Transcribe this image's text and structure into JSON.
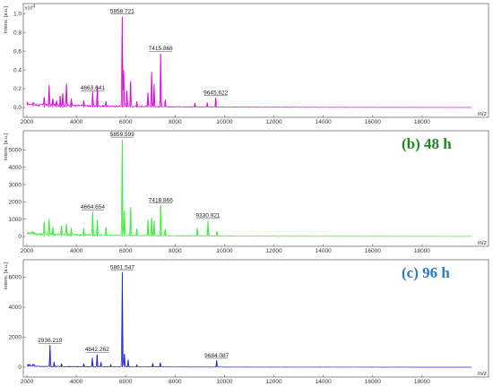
{
  "chart_data": [
    {
      "type": "line",
      "ylabel": "Intens. [a.u.]",
      "xlabel": "m/z",
      "y_exponent_label": "x10",
      "y_exponent_power": "4",
      "title": "",
      "ylim": [
        0,
        1.05
      ],
      "xlim": [
        2000,
        20000
      ],
      "yticks": [
        "0.0",
        "0.2",
        "0.4",
        "0.6",
        "0.8",
        "1.0"
      ],
      "ytick_values": [
        0,
        0.2,
        0.4,
        0.6,
        0.8,
        1.0
      ],
      "color": "#e000e0",
      "peaks": [
        {
          "x": 2700,
          "y": 0.1
        },
        {
          "x": 2900,
          "y": 0.22
        },
        {
          "x": 3050,
          "y": 0.08
        },
        {
          "x": 3200,
          "y": 0.05
        },
        {
          "x": 3350,
          "y": 0.12
        },
        {
          "x": 3450,
          "y": 0.15
        },
        {
          "x": 3600,
          "y": 0.24
        },
        {
          "x": 3800,
          "y": 0.09
        },
        {
          "x": 4300,
          "y": 0.06
        },
        {
          "x": 4663.641,
          "y": 0.15
        },
        {
          "x": 4850,
          "y": 0.22
        },
        {
          "x": 5200,
          "y": 0.06
        },
        {
          "x": 5858.721,
          "y": 0.97
        },
        {
          "x": 5920,
          "y": 0.4
        },
        {
          "x": 6050,
          "y": 0.18
        },
        {
          "x": 6200,
          "y": 0.28
        },
        {
          "x": 6450,
          "y": 0.06
        },
        {
          "x": 6900,
          "y": 0.16
        },
        {
          "x": 7050,
          "y": 0.38
        },
        {
          "x": 7150,
          "y": 0.25
        },
        {
          "x": 7415.868,
          "y": 0.57
        },
        {
          "x": 7600,
          "y": 0.08
        },
        {
          "x": 8800,
          "y": 0.04
        },
        {
          "x": 9300,
          "y": 0.05
        },
        {
          "x": 9645.622,
          "y": 0.1
        }
      ],
      "annotations": [
        {
          "x": 4663.641,
          "y": 0.17,
          "label": "4663.641"
        },
        {
          "x": 5858.721,
          "y": 0.99,
          "label": "5858.721"
        },
        {
          "x": 7415.868,
          "y": 0.59,
          "label": "7415.868"
        },
        {
          "x": 9645.622,
          "y": 0.12,
          "label": "9645.622"
        }
      ],
      "baseline": 0.03
    },
    {
      "type": "line",
      "ylabel": "Intens. [a.u.]",
      "xlabel": "m/z",
      "title": "(b) 48 h",
      "title_color": "#1e8a1e",
      "ylim": [
        0,
        5800
      ],
      "xlim": [
        2000,
        20000
      ],
      "yticks": [
        "0",
        "1000",
        "2000",
        "3000",
        "4000",
        "5000"
      ],
      "ytick_values": [
        0,
        1000,
        2000,
        3000,
        4000,
        5000
      ],
      "color": "#33ee33",
      "peaks": [
        {
          "x": 2700,
          "y": 800
        },
        {
          "x": 2900,
          "y": 900
        },
        {
          "x": 3050,
          "y": 500
        },
        {
          "x": 3400,
          "y": 600
        },
        {
          "x": 3600,
          "y": 700
        },
        {
          "x": 3800,
          "y": 400
        },
        {
          "x": 4300,
          "y": 400
        },
        {
          "x": 4664.654,
          "y": 1400
        },
        {
          "x": 4850,
          "y": 900
        },
        {
          "x": 5200,
          "y": 500
        },
        {
          "x": 5859.599,
          "y": 5600
        },
        {
          "x": 5950,
          "y": 1500
        },
        {
          "x": 6200,
          "y": 1700
        },
        {
          "x": 6450,
          "y": 400
        },
        {
          "x": 6900,
          "y": 1000
        },
        {
          "x": 7050,
          "y": 1100
        },
        {
          "x": 7150,
          "y": 900
        },
        {
          "x": 7418.866,
          "y": 1800
        },
        {
          "x": 7600,
          "y": 400
        },
        {
          "x": 8900,
          "y": 500
        },
        {
          "x": 9330.921,
          "y": 900
        },
        {
          "x": 9700,
          "y": 300
        }
      ],
      "annotations": [
        {
          "x": 4664.654,
          "y": 1500,
          "label": "4664.654"
        },
        {
          "x": 5859.599,
          "y": 5700,
          "label": "5859.599"
        },
        {
          "x": 7418.866,
          "y": 1900,
          "label": "7418.866"
        },
        {
          "x": 9330.921,
          "y": 1000,
          "label": "9330.921"
        }
      ],
      "baseline": 150
    },
    {
      "type": "line",
      "ylabel": "Intens. [a.u.]",
      "xlabel": "m/z",
      "title": "(c) 96 h",
      "title_color": "#2a7ac8",
      "ylim": [
        0,
        6800
      ],
      "xlim": [
        2000,
        20000
      ],
      "yticks": [
        "0",
        "2000",
        "4000",
        "6000"
      ],
      "ytick_values": [
        0,
        2000,
        4000,
        6000
      ],
      "color": "#2020dd",
      "peaks": [
        {
          "x": 2936.219,
          "y": 1450
        },
        {
          "x": 3100,
          "y": 300
        },
        {
          "x": 3400,
          "y": 200
        },
        {
          "x": 4300,
          "y": 200
        },
        {
          "x": 4650,
          "y": 600
        },
        {
          "x": 4842.262,
          "y": 850
        },
        {
          "x": 5000,
          "y": 300
        },
        {
          "x": 5400,
          "y": 150
        },
        {
          "x": 5861.547,
          "y": 6300
        },
        {
          "x": 5950,
          "y": 900
        },
        {
          "x": 6100,
          "y": 500
        },
        {
          "x": 6450,
          "y": 150
        },
        {
          "x": 7100,
          "y": 250
        },
        {
          "x": 7400,
          "y": 300
        },
        {
          "x": 9684.087,
          "y": 450
        }
      ],
      "annotations": [
        {
          "x": 2936.219,
          "y": 1550,
          "label": "2936.219"
        },
        {
          "x": 4842.262,
          "y": 950,
          "label": "4842.262"
        },
        {
          "x": 5861.547,
          "y": 6400,
          "label": "5861.547"
        },
        {
          "x": 9684.087,
          "y": 550,
          "label": "9684.087"
        }
      ],
      "baseline": 60
    }
  ],
  "xticks": [
    "2000",
    "4000",
    "6000",
    "8000",
    "10000",
    "12000",
    "14000",
    "16000",
    "18000"
  ],
  "xtick_values": [
    2000,
    4000,
    6000,
    8000,
    10000,
    12000,
    14000,
    16000,
    18000
  ],
  "x_unit_label": "m/z"
}
